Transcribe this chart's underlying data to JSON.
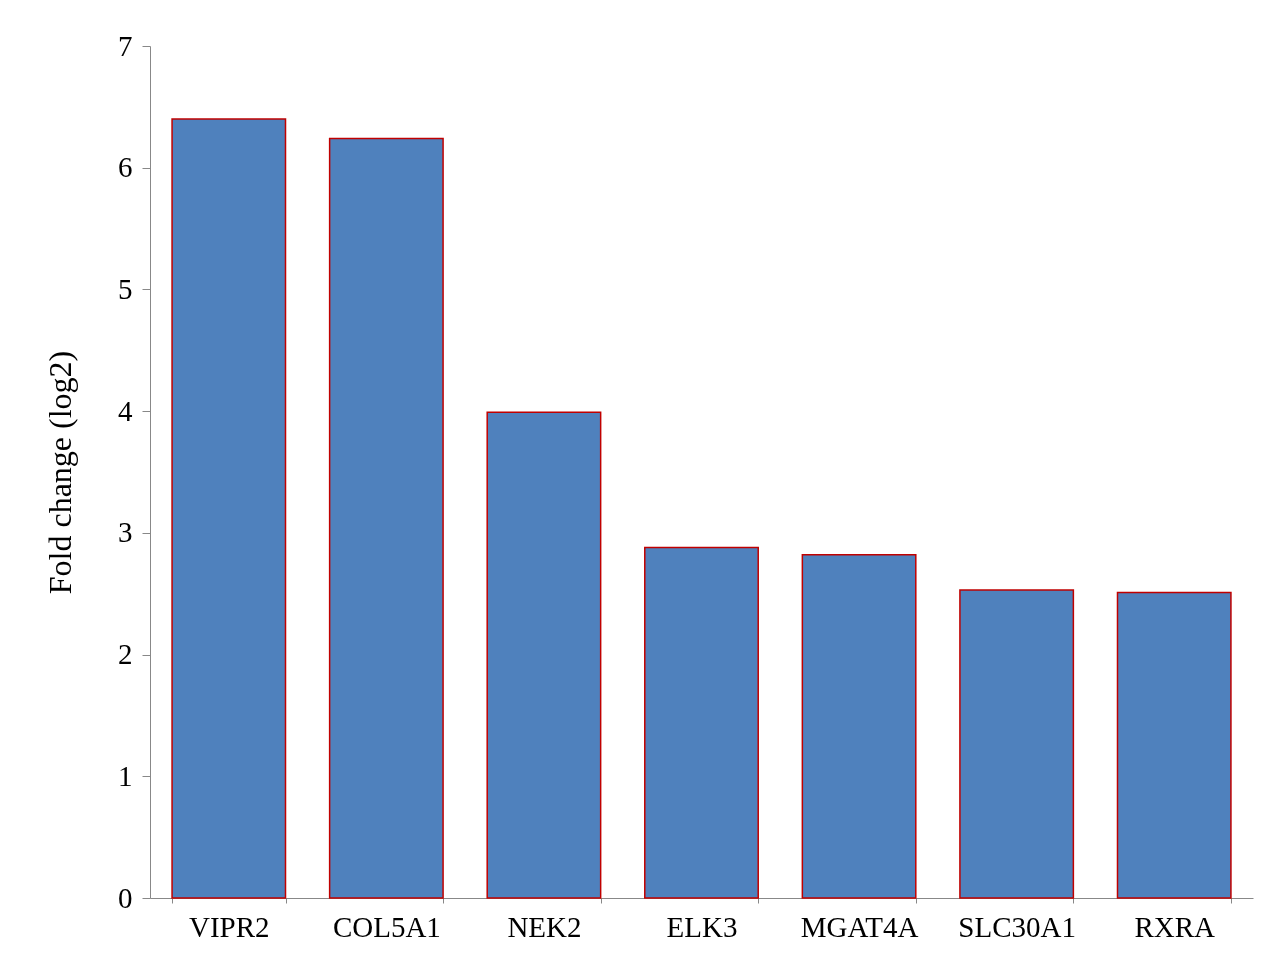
{
  "chart_data": {
    "type": "bar",
    "ylabel": "Fold change (log2)",
    "categories": [
      "VIPR2",
      "COL5A1",
      "NEK2",
      "ELK3",
      "MGAT4A",
      "SLC30A1",
      "RXRA"
    ],
    "values": [
      6.4,
      6.24,
      3.99,
      2.88,
      2.82,
      2.53,
      2.51
    ],
    "color": "#4f81bd",
    "ylim": [
      0,
      7
    ],
    "yticks": [
      0,
      1,
      2,
      3,
      4,
      5,
      6,
      7
    ],
    "grid": false
  }
}
